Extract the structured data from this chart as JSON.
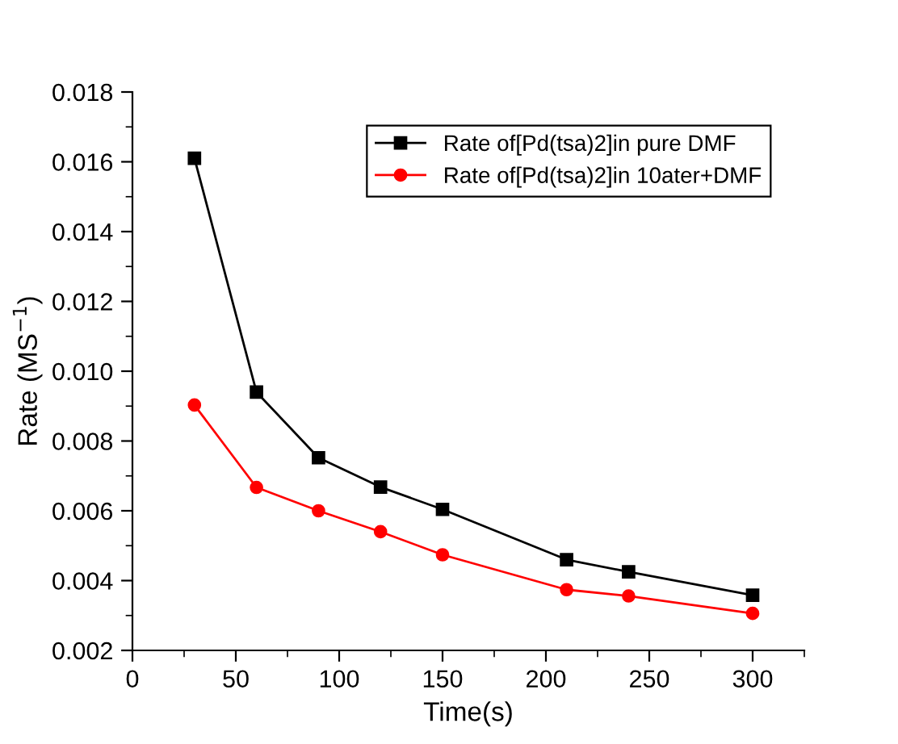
{
  "chart_data": {
    "type": "line",
    "xlabel": "Time(s)",
    "ylabel": "Rate (MS$^{−1}$)",
    "x": [
      30,
      60,
      90,
      120,
      150,
      210,
      240,
      300
    ],
    "series": [
      {
        "name": "Rate of[Pd(tsa)2]in pure DMF",
        "color": "#000000",
        "marker": "square",
        "values": [
          0.0161,
          0.0094,
          0.00752,
          0.00668,
          0.00604,
          0.0046,
          0.00425,
          0.00358
        ]
      },
      {
        "name": "Rate of[Pd(tsa)2]in 10ater+DMF",
        "color": "#ff0000",
        "marker": "circle",
        "values": [
          0.00903,
          0.00667,
          0.006,
          0.0054,
          0.00474,
          0.00374,
          0.00356,
          0.00306
        ]
      }
    ],
    "xlim": [
      0,
      325
    ],
    "xticks": [
      0,
      50,
      100,
      150,
      200,
      250,
      300
    ],
    "ylim": [
      0.002,
      0.018
    ],
    "yticks": [
      {
        "value": 0.002,
        "label": "0.002"
      },
      {
        "value": 0.004,
        "label": "0.004"
      },
      {
        "value": 0.006,
        "label": "0.006"
      },
      {
        "value": 0.008,
        "label": "0.008"
      },
      {
        "value": 0.01,
        "label": "0.010"
      },
      {
        "value": 0.012,
        "label": "0.012"
      },
      {
        "value": 0.014,
        "label": "0.014"
      },
      {
        "value": 0.016,
        "label": "0.016"
      },
      {
        "value": 0.018,
        "label": "0.018"
      }
    ],
    "legend": "top right",
    "grid": false,
    "line_style": "solid"
  }
}
